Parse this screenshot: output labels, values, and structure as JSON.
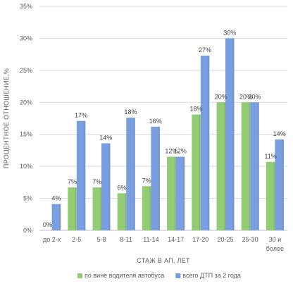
{
  "chart_data": {
    "type": "bar",
    "title": "",
    "xlabel": "СТАЖ В АП, ЛЕТ",
    "ylabel": "ПРОЦЕНТНОЕ ОТНОШЕНИЕ,%",
    "ylim": [
      0,
      35
    ],
    "yticks": [
      0,
      5,
      10,
      15,
      20,
      25,
      30,
      35
    ],
    "ytick_suffix": "%",
    "grid": true,
    "legend_position": "bottom",
    "categories": [
      [
        "до 2-х"
      ],
      [
        "2-5"
      ],
      [
        "5-8"
      ],
      [
        "8-11"
      ],
      [
        "11-14"
      ],
      [
        "14-17"
      ],
      [
        "17-20"
      ],
      [
        "20-25"
      ],
      [
        "25-30"
      ],
      [
        "30 и",
        "более"
      ]
    ],
    "series": [
      {
        "name": "по вине водителя автобуса",
        "color": "#92cc74",
        "values": [
          0,
          6.7,
          6.7,
          5.8,
          6.9,
          11.5,
          18.1,
          20.0,
          20.0,
          10.7
        ],
        "labels": [
          "0%",
          "7%",
          "7%",
          "6%",
          "7%",
          "12%",
          "18%",
          "20%",
          "20%",
          "11%"
        ]
      },
      {
        "name": "всего ДТП за 2 года",
        "color": "#7a9fe0",
        "values": [
          4.1,
          17.1,
          13.6,
          17.6,
          16.2,
          11.5,
          27.3,
          30.0,
          20.0,
          14.2
        ],
        "labels": [
          "4%",
          "17%",
          "14%",
          "18%",
          "16%",
          "12%",
          "27%",
          "30%",
          "20%",
          "14%"
        ]
      }
    ]
  }
}
